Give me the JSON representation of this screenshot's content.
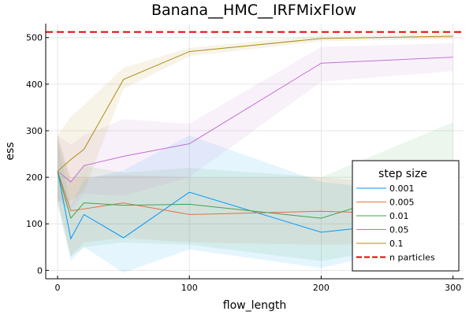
{
  "chart_data": {
    "type": "line",
    "title": "Banana__HMC__IRFMixFlow",
    "xlabel": "flow_length",
    "ylabel": "ess",
    "xlim": [
      -9,
      308
    ],
    "ylim": [
      -18,
      530
    ],
    "xticks": [
      0,
      100,
      200,
      300
    ],
    "yticks": [
      0,
      100,
      200,
      300,
      400,
      500
    ],
    "grid": true,
    "x": [
      0,
      10,
      20,
      50,
      100,
      200,
      300
    ],
    "legend": {
      "title": "step size",
      "position": "bottom-right"
    },
    "series": [
      {
        "name": "0.001",
        "color": "#009AFA",
        "values": [
          213,
          68,
          120,
          70,
          168,
          82,
          112
        ],
        "lower": [
          140,
          20,
          50,
          -5,
          45,
          5,
          70
        ],
        "upper": [
          280,
          140,
          195,
          215,
          290,
          190,
          160
        ]
      },
      {
        "name": "0.005",
        "color": "#E26F46",
        "values": [
          213,
          128,
          132,
          145,
          120,
          127,
          118
        ],
        "lower": [
          150,
          30,
          60,
          70,
          60,
          55,
          60
        ],
        "upper": [
          290,
          200,
          200,
          205,
          200,
          200,
          175
        ]
      },
      {
        "name": "0.01",
        "color": "#3DA44E",
        "values": [
          213,
          112,
          145,
          140,
          142,
          112,
          200
        ],
        "lower": [
          150,
          30,
          50,
          60,
          55,
          20,
          70
        ],
        "upper": [
          285,
          190,
          225,
          210,
          220,
          200,
          318
        ]
      },
      {
        "name": "0.05",
        "color": "#C371D2",
        "values": [
          213,
          190,
          225,
          245,
          272,
          445,
          458
        ],
        "lower": [
          150,
          130,
          165,
          160,
          200,
          405,
          428
        ],
        "upper": [
          290,
          270,
          290,
          325,
          315,
          480,
          488
        ]
      },
      {
        "name": "0.1",
        "color": "#AC8D18",
        "values": [
          213,
          238,
          260,
          410,
          470,
          498,
          503
        ],
        "lower": [
          150,
          150,
          170,
          390,
          460,
          492,
          497
        ],
        "upper": [
          290,
          330,
          355,
          435,
          478,
          505,
          508
        ]
      }
    ],
    "reference_line": {
      "name": "n particles",
      "y": 512,
      "color": "#E30000",
      "style": "dashed"
    }
  }
}
